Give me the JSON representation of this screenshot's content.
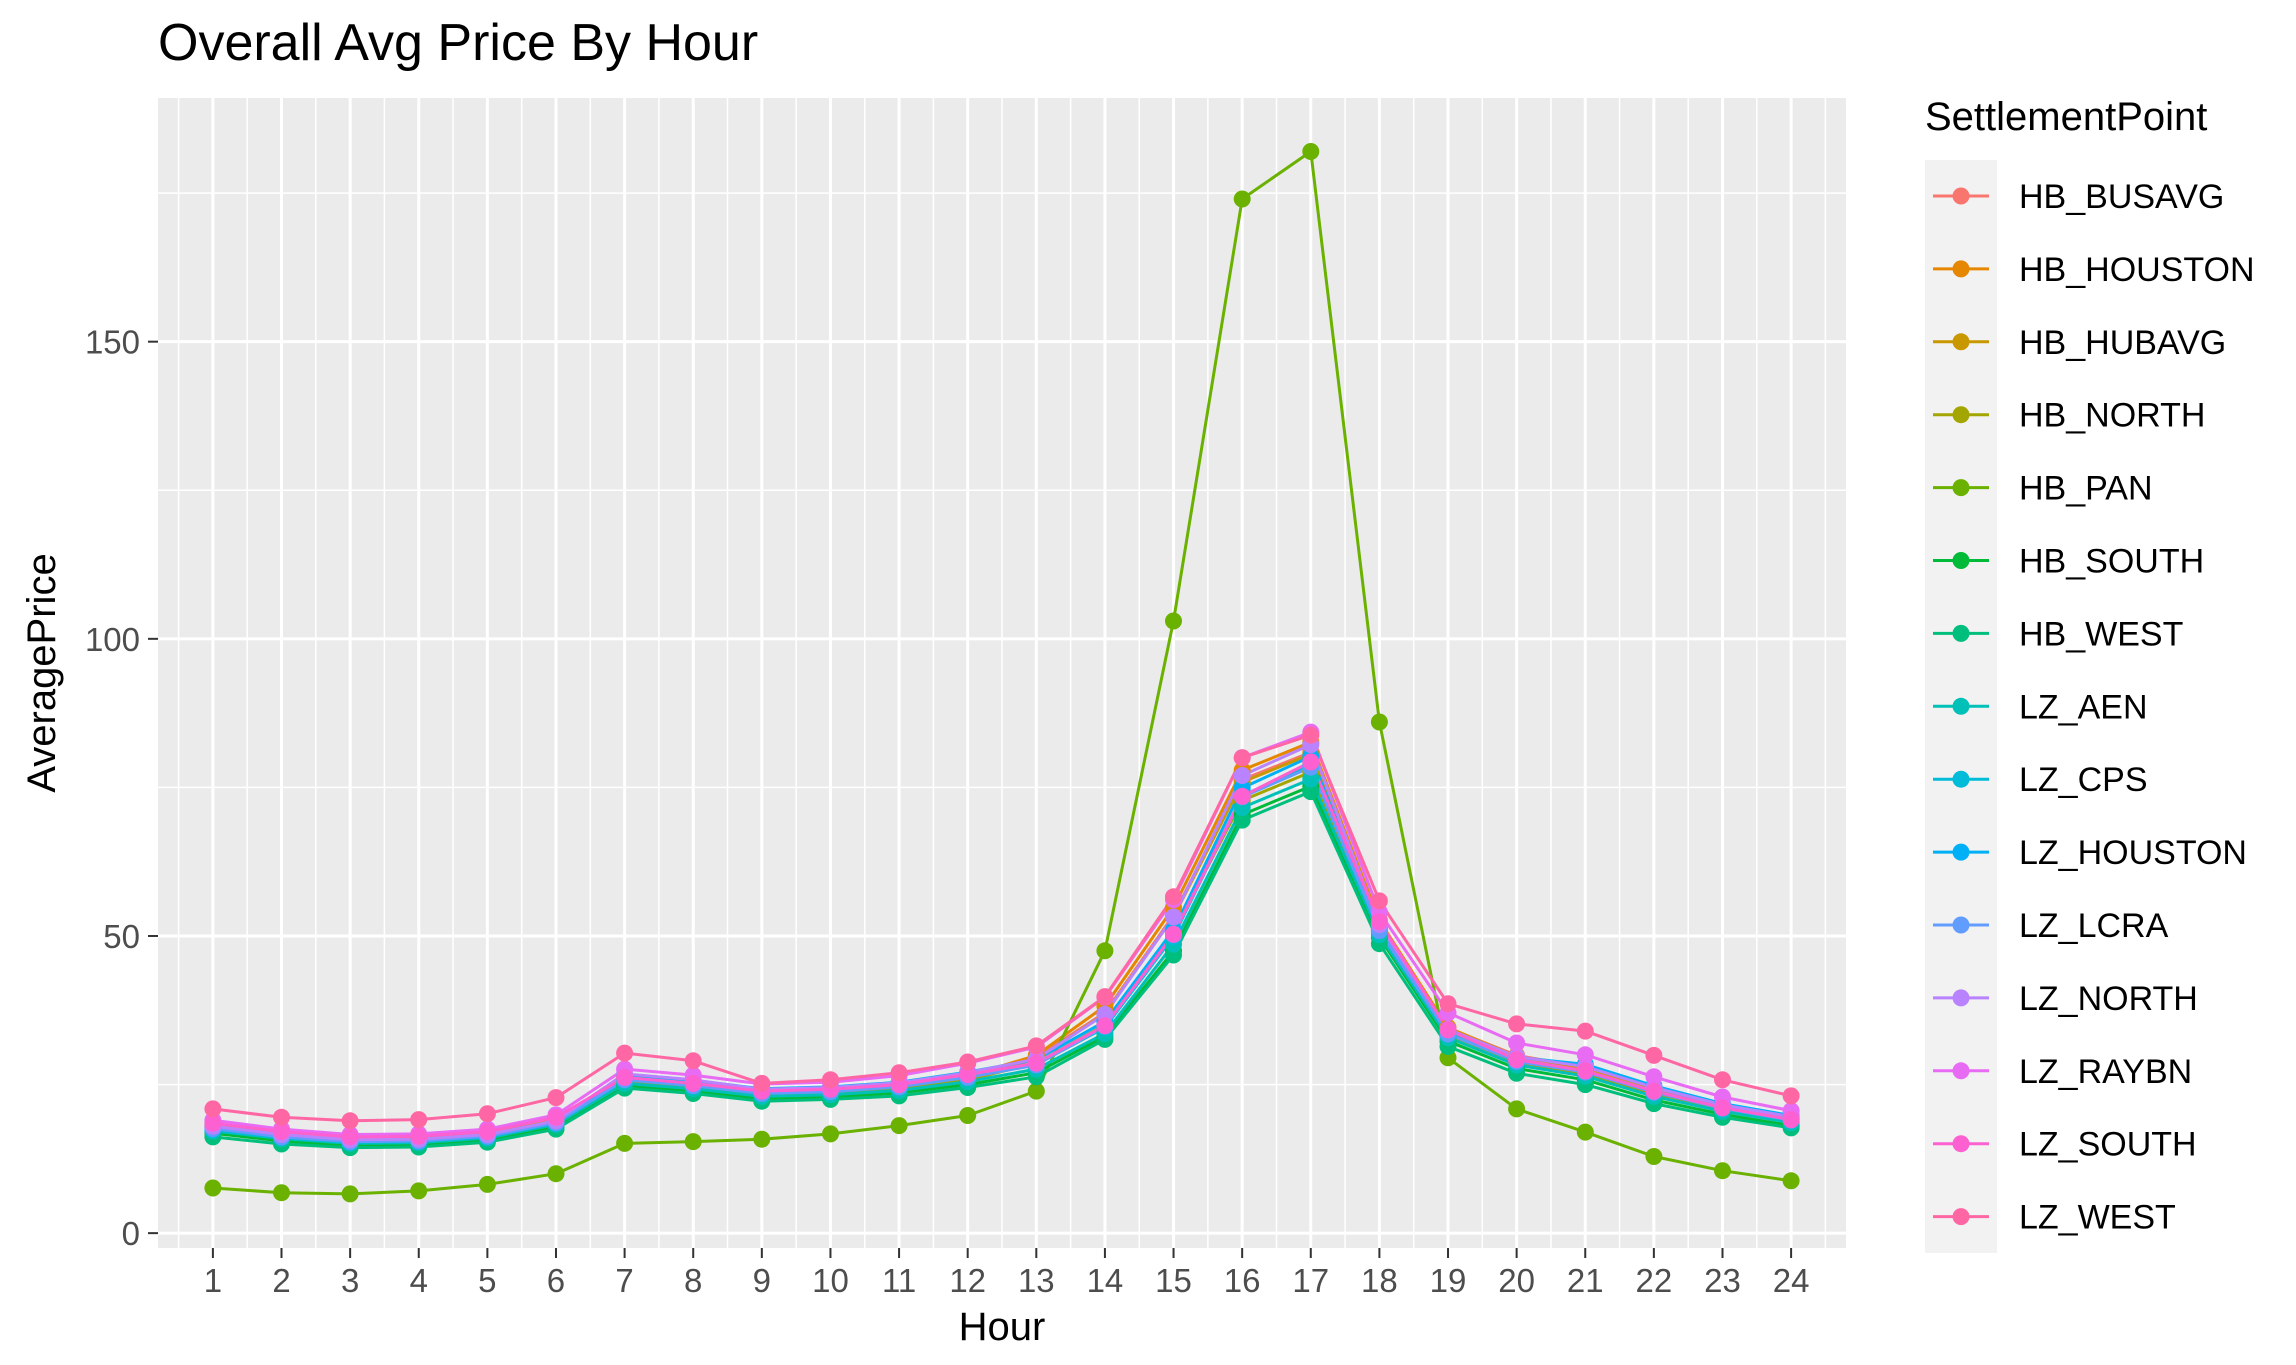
{
  "chart_data": {
    "type": "line",
    "title": "Overall Avg Price By Hour",
    "xlabel": "Hour",
    "ylabel": "AveragePrice",
    "x": [
      1,
      2,
      3,
      4,
      5,
      6,
      7,
      8,
      9,
      10,
      11,
      12,
      13,
      14,
      15,
      16,
      17,
      18,
      19,
      20,
      21,
      22,
      23,
      24
    ],
    "xlim": [
      0.2,
      24.8
    ],
    "ylim": [
      -2.5,
      191
    ],
    "yticks": [
      0,
      50,
      100,
      150
    ],
    "grid": true,
    "legend_title": "SettlementPoint",
    "legend_position": "right",
    "series": [
      {
        "name": "HB_BUSAVG",
        "color": "#F8766D",
        "values": [
          18.0,
          16.6,
          15.7,
          15.8,
          16.6,
          19.0,
          26.2,
          25.2,
          23.7,
          24.0,
          24.8,
          26.6,
          29.6,
          37.1,
          53.5,
          76.3,
          80.9,
          52.1,
          34.5,
          29.9,
          27.9,
          24.4,
          21.5,
          19.5
        ]
      },
      {
        "name": "HB_HOUSTON",
        "color": "#E58700",
        "values": [
          18.3,
          16.9,
          16.0,
          16.1,
          16.9,
          19.3,
          26.0,
          25.0,
          23.5,
          23.8,
          24.6,
          26.4,
          29.9,
          38.2,
          54.8,
          77.9,
          82.6,
          52.6,
          34.6,
          29.7,
          27.7,
          24.2,
          21.4,
          19.4
        ]
      },
      {
        "name": "HB_HUBAVG",
        "color": "#C99800",
        "values": [
          17.9,
          16.5,
          15.6,
          15.7,
          16.5,
          18.8,
          25.6,
          24.6,
          23.3,
          23.6,
          24.4,
          26.1,
          29.3,
          36.9,
          53.2,
          75.9,
          80.6,
          51.9,
          34.0,
          29.4,
          27.4,
          24.0,
          21.1,
          19.1
        ]
      },
      {
        "name": "HB_NORTH",
        "color": "#A3A500",
        "values": [
          17.7,
          16.3,
          15.4,
          15.5,
          16.3,
          18.6,
          25.4,
          24.4,
          23.1,
          23.4,
          24.2,
          25.8,
          28.6,
          35.0,
          50.6,
          72.8,
          77.6,
          51.0,
          33.4,
          28.8,
          26.8,
          23.4,
          20.6,
          18.7
        ]
      },
      {
        "name": "HB_PAN",
        "color": "#6BB100",
        "values": [
          7.6,
          6.8,
          6.6,
          7.1,
          8.2,
          10.0,
          15.1,
          15.4,
          15.8,
          16.7,
          18.1,
          19.8,
          23.9,
          47.5,
          103.0,
          174.0,
          182.0,
          86.0,
          29.5,
          20.9,
          17.0,
          12.9,
          10.5,
          8.8
        ]
      },
      {
        "name": "HB_SOUTH",
        "color": "#00BA38",
        "values": [
          16.8,
          15.5,
          14.7,
          14.8,
          15.6,
          17.9,
          24.8,
          23.9,
          22.6,
          22.9,
          23.6,
          25.0,
          27.0,
          33.1,
          47.5,
          70.4,
          75.2,
          49.8,
          32.3,
          27.7,
          25.8,
          22.4,
          20.0,
          18.1
        ]
      },
      {
        "name": "HB_WEST",
        "color": "#00BF7D",
        "values": [
          16.2,
          15.0,
          14.4,
          14.5,
          15.3,
          17.5,
          24.4,
          23.5,
          22.2,
          22.5,
          23.1,
          24.5,
          26.3,
          32.6,
          46.8,
          69.5,
          74.3,
          48.7,
          31.4,
          26.9,
          25.0,
          21.8,
          19.5,
          17.7
        ]
      },
      {
        "name": "LZ_AEN",
        "color": "#00C0B8",
        "values": [
          17.2,
          15.9,
          15.1,
          15.2,
          16.0,
          18.3,
          25.2,
          24.3,
          23.0,
          23.3,
          24.0,
          25.5,
          27.6,
          33.6,
          48.6,
          71.6,
          76.4,
          50.2,
          32.9,
          28.3,
          26.4,
          23.0,
          20.5,
          18.6
        ]
      },
      {
        "name": "LZ_CPS",
        "color": "#00BCD8",
        "values": [
          17.4,
          16.1,
          15.3,
          15.4,
          16.2,
          18.5,
          25.8,
          24.9,
          23.6,
          23.9,
          24.7,
          26.4,
          28.4,
          34.6,
          49.9,
          73.6,
          78.8,
          50.9,
          33.6,
          29.0,
          27.2,
          23.9,
          21.2,
          19.2
        ]
      },
      {
        "name": "LZ_HOUSTON",
        "color": "#00B0F6",
        "values": [
          17.9,
          16.5,
          15.6,
          15.7,
          16.5,
          18.9,
          26.6,
          25.7,
          24.3,
          24.6,
          25.4,
          27.1,
          29.2,
          35.6,
          51.0,
          74.9,
          80.2,
          51.4,
          34.1,
          29.6,
          28.4,
          24.8,
          21.8,
          19.8
        ]
      },
      {
        "name": "LZ_LCRA",
        "color": "#619CFF",
        "values": [
          17.6,
          16.2,
          15.4,
          15.5,
          16.3,
          18.6,
          25.8,
          24.8,
          23.5,
          23.8,
          24.6,
          26.2,
          28.3,
          34.8,
          50.2,
          73.4,
          78.4,
          50.9,
          33.5,
          28.9,
          27.1,
          23.7,
          21.0,
          19.0
        ]
      },
      {
        "name": "LZ_NORTH",
        "color": "#B983FF",
        "values": [
          18.0,
          16.6,
          15.7,
          15.8,
          16.6,
          18.9,
          26.8,
          25.8,
          24.2,
          24.5,
          25.3,
          27.0,
          29.3,
          36.8,
          53.2,
          77.0,
          82.2,
          51.9,
          34.3,
          29.7,
          28.0,
          24.5,
          21.6,
          19.6
        ]
      },
      {
        "name": "LZ_RAYBN",
        "color": "#E76BF3",
        "values": [
          19.0,
          17.5,
          16.6,
          16.7,
          17.5,
          19.9,
          27.6,
          26.6,
          25.1,
          25.4,
          26.5,
          28.6,
          31.3,
          39.7,
          56.1,
          80.0,
          84.3,
          54.0,
          37.1,
          32.0,
          30.0,
          26.3,
          22.9,
          20.6
        ]
      },
      {
        "name": "LZ_SOUTH",
        "color": "#FD61D1",
        "values": [
          18.5,
          17.1,
          16.2,
          16.3,
          17.1,
          19.5,
          26.2,
          25.2,
          23.9,
          24.2,
          25.0,
          26.7,
          28.6,
          34.9,
          50.3,
          73.5,
          79.3,
          52.4,
          34.2,
          29.2,
          27.3,
          23.9,
          21.1,
          19.1
        ]
      },
      {
        "name": "LZ_WEST",
        "color": "#FF67A4",
        "values": [
          20.9,
          19.5,
          18.9,
          19.1,
          20.1,
          22.8,
          30.3,
          29.0,
          25.2,
          25.8,
          27.0,
          28.8,
          31.5,
          39.8,
          56.6,
          80.0,
          83.8,
          55.9,
          38.6,
          35.2,
          34.0,
          29.9,
          25.8,
          23.1
        ]
      }
    ]
  }
}
